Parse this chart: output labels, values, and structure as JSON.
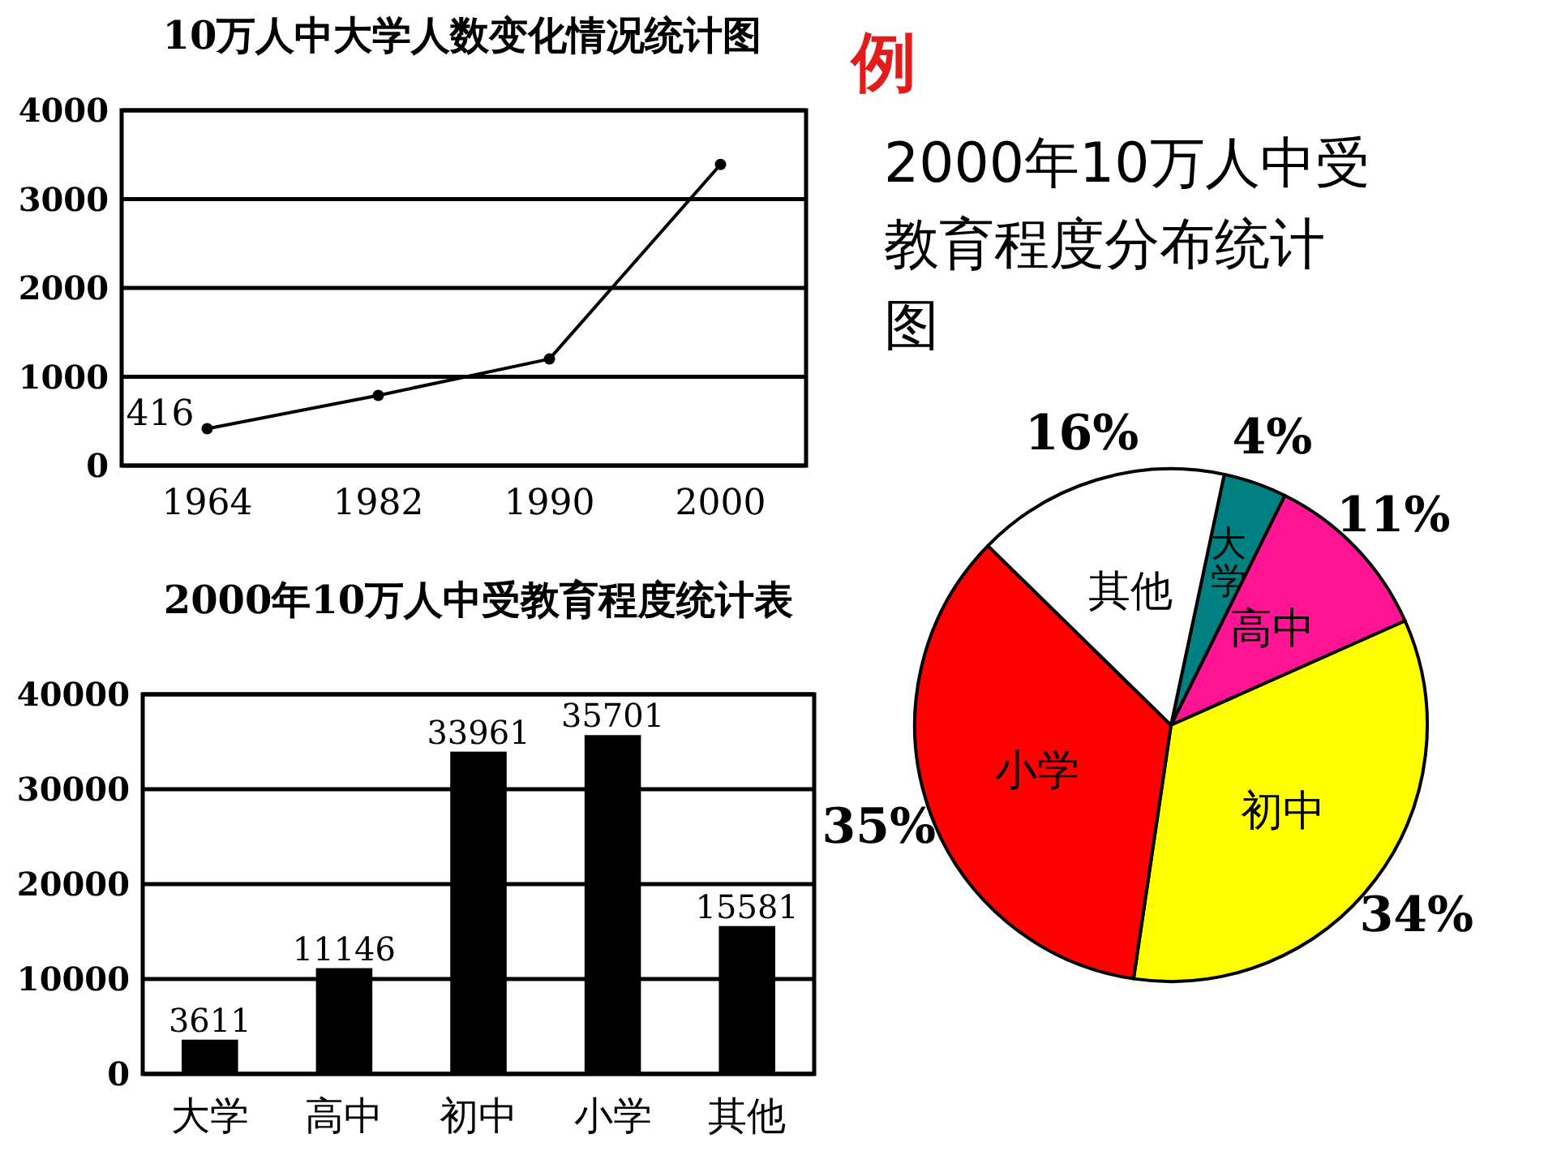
{
  "chart_data": [
    {
      "type": "line",
      "title": "10万人中大学人数变化情况统计图",
      "categories": [
        "1964",
        "1982",
        "1990",
        "2000"
      ],
      "values": [
        416,
        790,
        1200,
        3390
      ],
      "value_labels": [
        "416",
        null,
        null,
        null
      ],
      "ylim": [
        0,
        4000
      ],
      "yticks": [
        0,
        1000,
        2000,
        3000,
        4000
      ],
      "grid": "y",
      "marker": "circle",
      "color": "#000000"
    },
    {
      "type": "bar",
      "title": "2000年10万人中受教育程度统计表",
      "categories": [
        "大学",
        "高中",
        "初中",
        "小学",
        "其他"
      ],
      "values": [
        3611,
        11146,
        33961,
        35701,
        15581
      ],
      "color": "#000000",
      "ylim": [
        0,
        40000
      ],
      "yticks": [
        0,
        10000,
        20000,
        30000,
        40000
      ],
      "grid": "y",
      "data_labels": true
    },
    {
      "type": "pie",
      "title": "2000年10万人中受教育程度分布统计图",
      "annotations": [
        "例"
      ],
      "categories": [
        "大学",
        "高中",
        "初中",
        "小学",
        "其他"
      ],
      "values": [
        4,
        11,
        34,
        35,
        16
      ],
      "colors": [
        "#008080",
        "#ff1493",
        "#ffff00",
        "#ff0000",
        "#ffffff"
      ],
      "value_labels": [
        "4%",
        "11%",
        "34%",
        "35%",
        "16%"
      ]
    }
  ]
}
